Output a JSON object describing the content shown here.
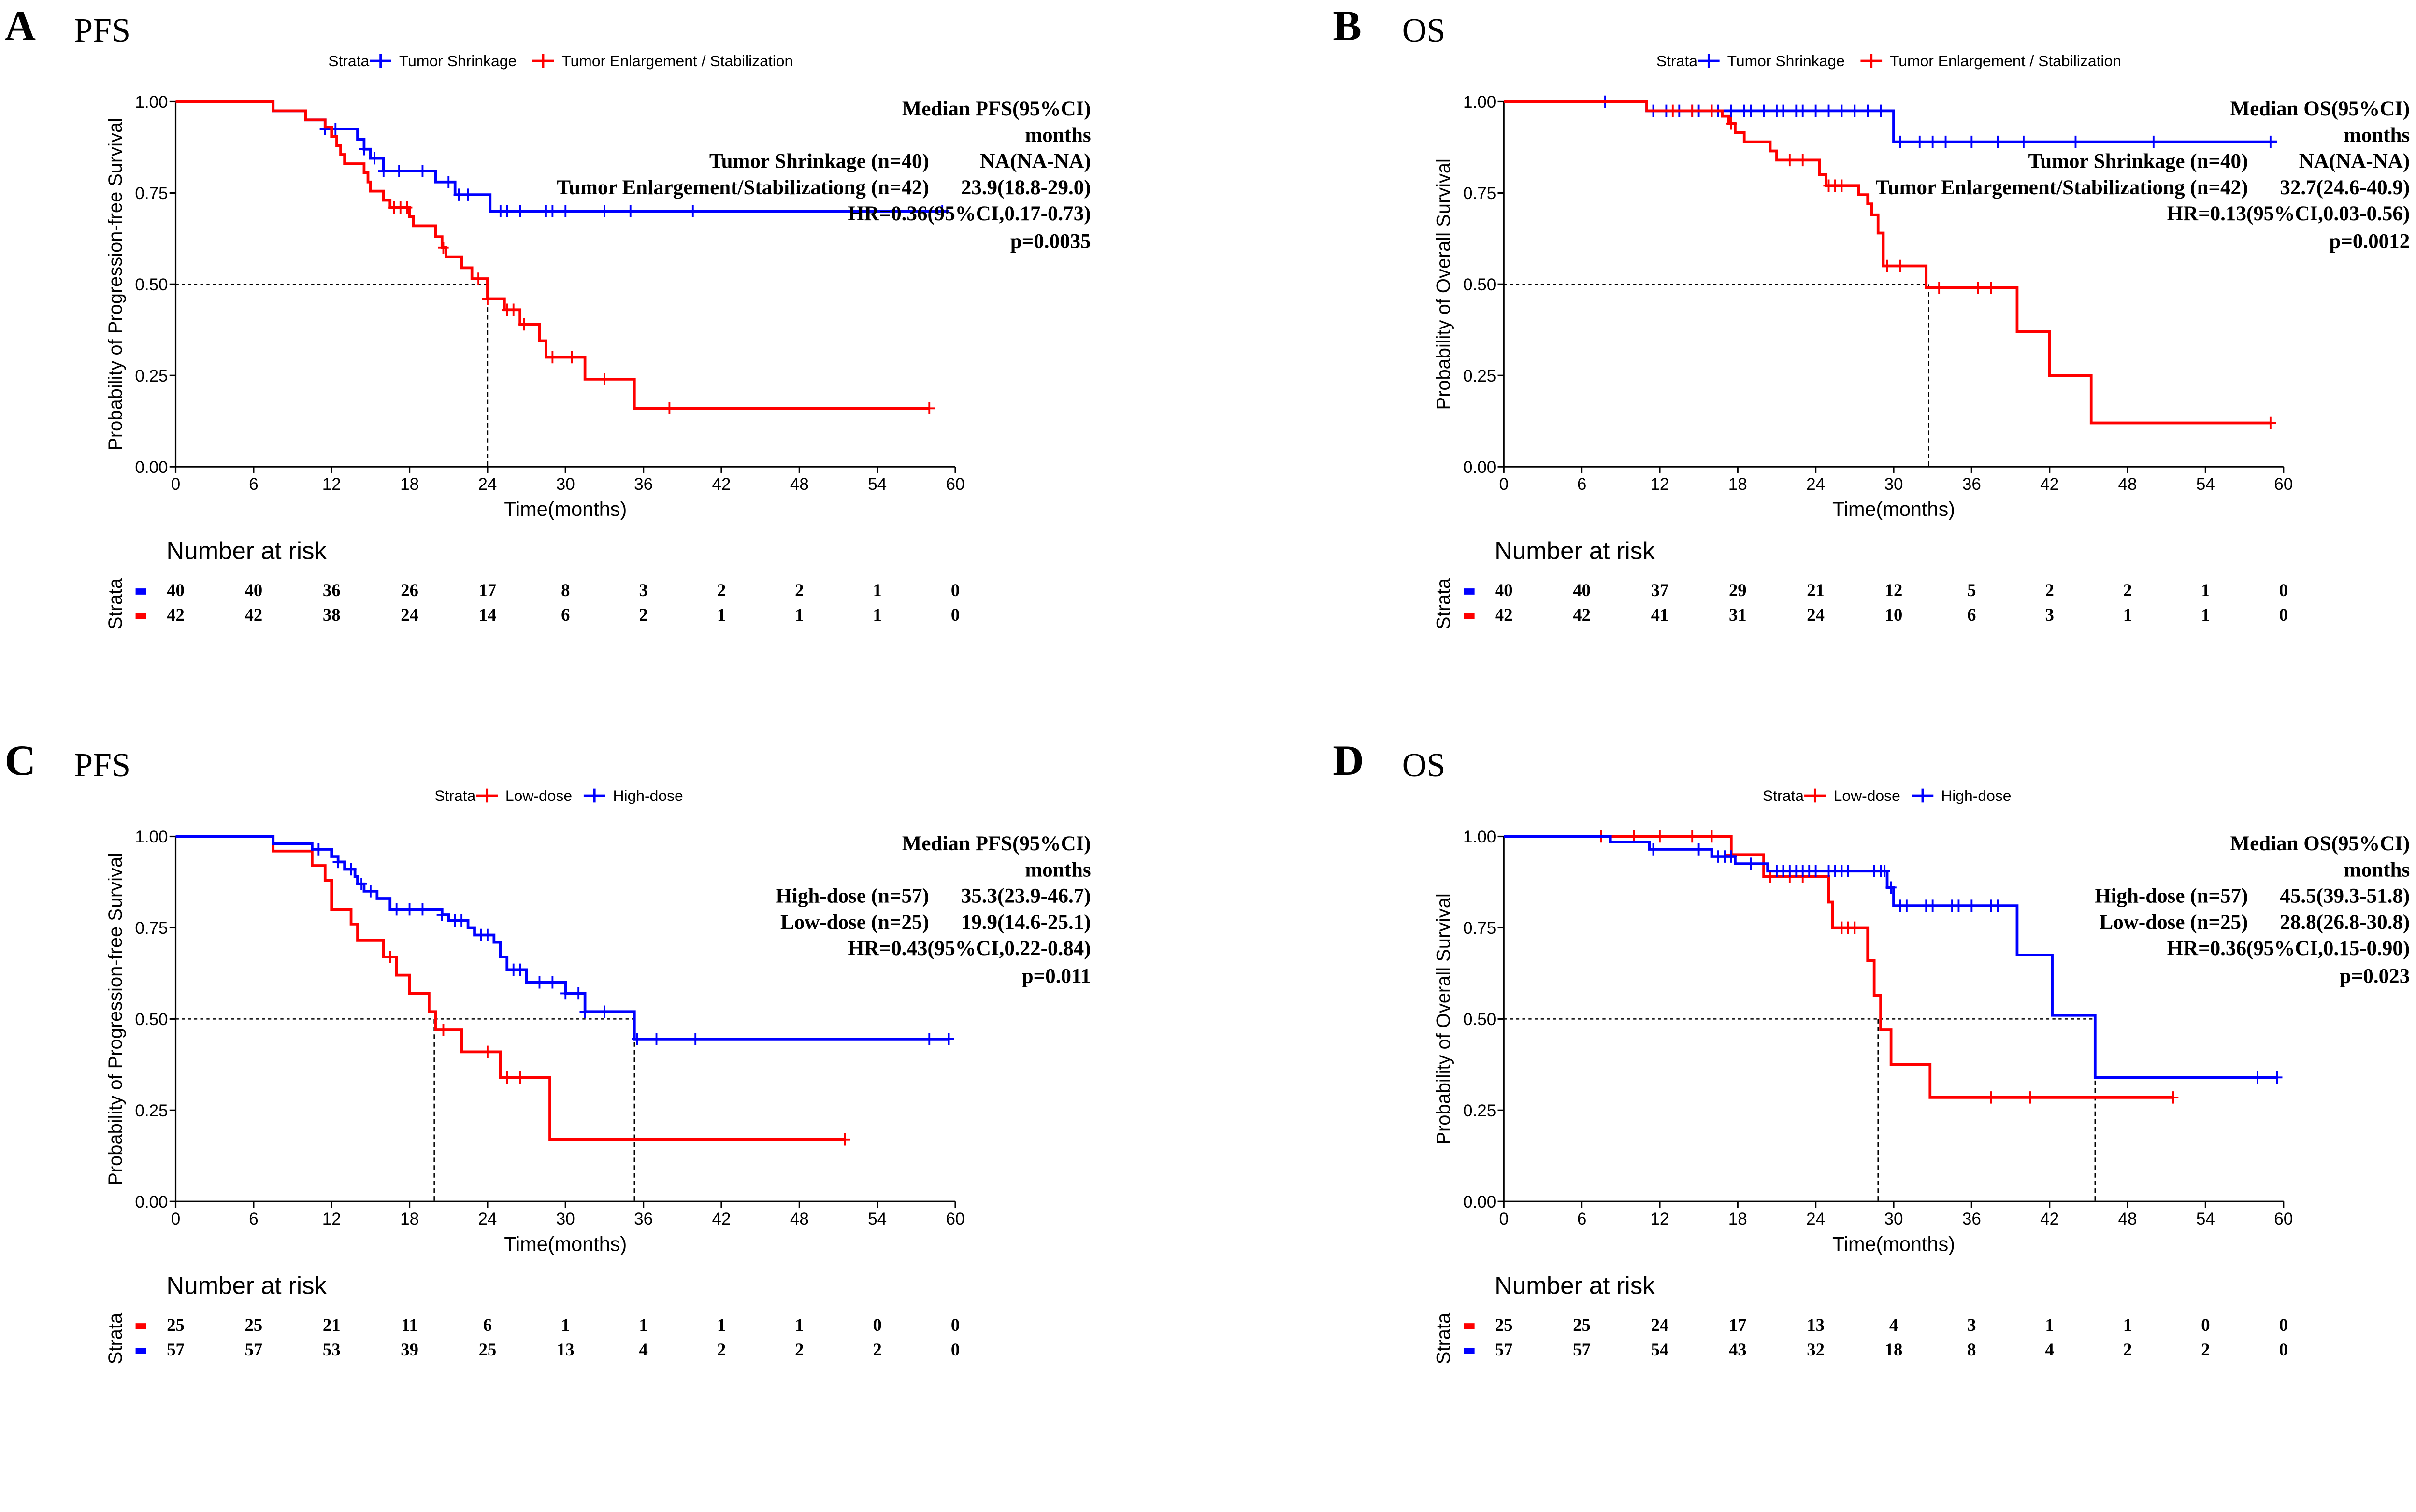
{
  "colors": {
    "blue": "#0000FF",
    "red": "#FF0000",
    "axis": "#000000"
  },
  "chart_data": [
    {
      "type": "line",
      "letter": "A",
      "title": "PFS",
      "xlabel": "Time(months)",
      "ylabel": "Probability of  Progression-free Survival",
      "xlim": [
        0,
        60
      ],
      "ylim": [
        0,
        1
      ],
      "xticks": [
        "0",
        "6",
        "12",
        "18",
        "24",
        "30",
        "36",
        "42",
        "48",
        "54",
        "60"
      ],
      "yticks": [
        "0.00",
        "0.25",
        "0.50",
        "0.75",
        "1.00"
      ],
      "legend": {
        "title": "Strata",
        "position": "top"
      },
      "medians": [
        24
      ],
      "annotation": {
        "heading": "Median PFS(95%CI)",
        "unit": "months",
        "rows": [
          {
            "label": "Tumor Shrinkage (n=40)",
            "value": "NA(NA-NA)"
          },
          {
            "label": "Tumor Enlargement/Stabilizationg (n=42)",
            "value": "23.9(18.8-29.0)"
          }
        ],
        "hr": "HR=0.36(95%CI,0.17-0.73)",
        "p": "p=0.0035"
      },
      "risk_title": "Number at risk",
      "risk_ylabel": "Strata",
      "series": [
        {
          "name": "Tumor Shrinkage",
          "color": "#0000FF",
          "steps": [
            [
              0,
              1
            ],
            [
              7.5,
              0.975
            ],
            [
              10,
              0.95
            ],
            [
              11.5,
              0.925
            ],
            [
              14,
              0.897
            ],
            [
              14.5,
              0.87
            ],
            [
              15,
              0.845
            ],
            [
              16,
              0.81
            ],
            [
              20,
              0.78
            ],
            [
              21.5,
              0.745
            ],
            [
              24.2,
              0.7
            ],
            [
              59.5,
              0.7
            ]
          ],
          "censors": [
            11.5,
            12.3,
            14.5,
            15.3,
            16,
            17.2,
            19,
            21,
            21.8,
            22.5,
            25,
            25.5,
            26.5,
            28.5,
            29,
            30,
            33,
            35,
            39.8,
            59
          ],
          "risk": [
            "40",
            "40",
            "36",
            "26",
            "17",
            "8",
            "3",
            "2",
            "2",
            "1",
            "0"
          ]
        },
        {
          "name": "Tumor Enlargement / Stabilization",
          "color": "#FF0000",
          "steps": [
            [
              0,
              1
            ],
            [
              7.5,
              0.975
            ],
            [
              10,
              0.95
            ],
            [
              11.5,
              0.93
            ],
            [
              12,
              0.905
            ],
            [
              12.4,
              0.88
            ],
            [
              12.7,
              0.855
            ],
            [
              13,
              0.83
            ],
            [
              14.5,
              0.805
            ],
            [
              14.8,
              0.78
            ],
            [
              15,
              0.755
            ],
            [
              16,
              0.73
            ],
            [
              16.5,
              0.71
            ],
            [
              18,
              0.685
            ],
            [
              18.3,
              0.66
            ],
            [
              20,
              0.63
            ],
            [
              20.5,
              0.6
            ],
            [
              20.8,
              0.575
            ],
            [
              22,
              0.545
            ],
            [
              22.8,
              0.515
            ],
            [
              24,
              0.46
            ],
            [
              25.3,
              0.43
            ],
            [
              26.5,
              0.39
            ],
            [
              28,
              0.345
            ],
            [
              28.5,
              0.3
            ],
            [
              31.5,
              0.24
            ],
            [
              35.3,
              0.16
            ],
            [
              58,
              0.16
            ]
          ],
          "censors": [
            16.8,
            17.3,
            17.8,
            20.6,
            23.3,
            24,
            25.5,
            26,
            26.8,
            29,
            30.5,
            33,
            38,
            58
          ],
          "risk": [
            "42",
            "42",
            "38",
            "24",
            "14",
            "6",
            "2",
            "1",
            "1",
            "1",
            "0"
          ]
        }
      ]
    },
    {
      "type": "line",
      "letter": "B",
      "title": "OS",
      "xlabel": "Time(months)",
      "ylabel": "Probability of  Overall Survival",
      "xlim": [
        0,
        60
      ],
      "ylim": [
        0,
        1
      ],
      "xticks": [
        "0",
        "6",
        "12",
        "18",
        "24",
        "30",
        "36",
        "42",
        "48",
        "54",
        "60"
      ],
      "yticks": [
        "0.00",
        "0.25",
        "0.50",
        "0.75",
        "1.00"
      ],
      "legend": {
        "title": "Strata",
        "position": "top"
      },
      "medians": [
        32.7
      ],
      "annotation": {
        "heading": "Median OS(95%CI)",
        "unit": "months",
        "rows": [
          {
            "label": "Tumor Shrinkage (n=40)",
            "value": "NA(NA-NA)"
          },
          {
            "label": "Tumor Enlargement/Stabilizationg (n=42)",
            "value": "32.7(24.6-40.9)"
          }
        ],
        "hr": "HR=0.13(95%CI,0.03-0.56)",
        "p": "p=0.0012"
      },
      "risk_title": "Number at risk",
      "risk_ylabel": "Strata",
      "series": [
        {
          "name": "Tumor Shrinkage",
          "color": "#0000FF",
          "steps": [
            [
              0,
              1
            ],
            [
              11,
              0.975
            ],
            [
              30,
              0.89
            ],
            [
              59.5,
              0.89
            ]
          ],
          "censors": [
            7.8,
            11.5,
            12.5,
            13.5,
            14.5,
            15,
            16,
            16.5,
            17.5,
            18.5,
            19,
            20,
            21,
            21.5,
            22.5,
            23,
            24,
            25,
            26,
            27,
            28,
            29,
            30.5,
            32,
            33,
            34,
            36,
            38,
            40,
            44,
            50,
            59
          ],
          "risk": [
            "40",
            "40",
            "37",
            "29",
            "21",
            "12",
            "5",
            "2",
            "2",
            "1",
            "0"
          ]
        },
        {
          "name": "Tumor Enlargement / Stabilization",
          "color": "#FF0000",
          "steps": [
            [
              0,
              1
            ],
            [
              11,
              0.975
            ],
            [
              16.8,
              0.96
            ],
            [
              17.3,
              0.94
            ],
            [
              17.8,
              0.915
            ],
            [
              18.5,
              0.89
            ],
            [
              20.5,
              0.865
            ],
            [
              21,
              0.84
            ],
            [
              24.3,
              0.8
            ],
            [
              24.8,
              0.77
            ],
            [
              27.3,
              0.745
            ],
            [
              28,
              0.72
            ],
            [
              28.3,
              0.69
            ],
            [
              28.8,
              0.64
            ],
            [
              29.2,
              0.55
            ],
            [
              32.5,
              0.49
            ],
            [
              39.5,
              0.37
            ],
            [
              42,
              0.25
            ],
            [
              45.2,
              0.12
            ],
            [
              59,
              0.12
            ]
          ],
          "censors": [
            13,
            14.5,
            16,
            17.5,
            22,
            23,
            25,
            25.5,
            26,
            29.5,
            30.5,
            33.5,
            36.5,
            37.5,
            59
          ],
          "risk": [
            "42",
            "42",
            "41",
            "31",
            "24",
            "10",
            "6",
            "3",
            "1",
            "1",
            "0"
          ]
        }
      ]
    },
    {
      "type": "line",
      "letter": "C",
      "title": "PFS",
      "xlabel": "Time(months)",
      "ylabel": "Probability of  Progression-free Survival",
      "xlim": [
        0,
        60
      ],
      "ylim": [
        0,
        1
      ],
      "xticks": [
        "0",
        "6",
        "12",
        "18",
        "24",
        "30",
        "36",
        "42",
        "48",
        "54",
        "60"
      ],
      "yticks": [
        "0.00",
        "0.25",
        "0.50",
        "0.75",
        "1.00"
      ],
      "legend": {
        "title": "Strata",
        "position": "top"
      },
      "medians": [
        19.9,
        35.3
      ],
      "annotation": {
        "heading": "Median PFS(95%CI)",
        "unit": "months",
        "rows": [
          {
            "label": "High-dose (n=57)",
            "value": "35.3(23.9-46.7)"
          },
          {
            "label": "Low-dose (n=25)",
            "value": "19.9(14.6-25.1)"
          }
        ],
        "hr": "HR=0.43(95%CI,0.22-0.84)",
        "p": "p=0.011"
      },
      "risk_title": "Number at risk",
      "risk_ylabel": "Strata",
      "series": [
        {
          "name": "Low-dose",
          "color": "#FF0000",
          "steps": [
            [
              0,
              1
            ],
            [
              7.5,
              0.96
            ],
            [
              10.5,
              0.92
            ],
            [
              11.5,
              0.88
            ],
            [
              12,
              0.8
            ],
            [
              13.5,
              0.76
            ],
            [
              14,
              0.715
            ],
            [
              16,
              0.67
            ],
            [
              17,
              0.62
            ],
            [
              18,
              0.57
            ],
            [
              19.5,
              0.52
            ],
            [
              20,
              0.47
            ],
            [
              22,
              0.41
            ],
            [
              25,
              0.34
            ],
            [
              28.8,
              0.17
            ],
            [
              51.5,
              0.17
            ]
          ],
          "censors": [
            16.5,
            20.6,
            24,
            25.5,
            26.5,
            51.5
          ],
          "risk": [
            "25",
            "25",
            "21",
            "11",
            "6",
            "1",
            "1",
            "1",
            "1",
            "0",
            "0"
          ]
        },
        {
          "name": "High-dose",
          "color": "#0000FF",
          "steps": [
            [
              0,
              1
            ],
            [
              7.5,
              0.98
            ],
            [
              10.5,
              0.965
            ],
            [
              12,
              0.945
            ],
            [
              12.5,
              0.93
            ],
            [
              13,
              0.91
            ],
            [
              13.8,
              0.89
            ],
            [
              14,
              0.87
            ],
            [
              14.5,
              0.85
            ],
            [
              15.5,
              0.83
            ],
            [
              16.5,
              0.8
            ],
            [
              20.5,
              0.785
            ],
            [
              21,
              0.77
            ],
            [
              22.5,
              0.75
            ],
            [
              23,
              0.73
            ],
            [
              24.5,
              0.71
            ],
            [
              25,
              0.67
            ],
            [
              25.5,
              0.635
            ],
            [
              27,
              0.6
            ],
            [
              30,
              0.57
            ],
            [
              31.5,
              0.52
            ],
            [
              35.3,
              0.445
            ],
            [
              59.5,
              0.445
            ]
          ],
          "censors": [
            11,
            12.5,
            13.5,
            14.3,
            15,
            17,
            18,
            19,
            20.5,
            21.5,
            22,
            23.5,
            24,
            26,
            26.5,
            28,
            29,
            30,
            31,
            31.5,
            33,
            35.5,
            37,
            40,
            58,
            59.5
          ],
          "risk": [
            "57",
            "57",
            "53",
            "39",
            "25",
            "13",
            "4",
            "2",
            "2",
            "2",
            "0"
          ]
        }
      ]
    },
    {
      "type": "line",
      "letter": "D",
      "title": "OS",
      "xlabel": "Time(months)",
      "ylabel": "Probability of  Overall Survival",
      "xlim": [
        0,
        60
      ],
      "ylim": [
        0,
        1
      ],
      "xticks": [
        "0",
        "6",
        "12",
        "18",
        "24",
        "30",
        "36",
        "42",
        "48",
        "54",
        "60"
      ],
      "yticks": [
        "0.00",
        "0.25",
        "0.50",
        "0.75",
        "1.00"
      ],
      "legend": {
        "title": "Strata",
        "position": "top"
      },
      "medians": [
        28.8,
        45.5
      ],
      "annotation": {
        "heading": "Median OS(95%CI)",
        "unit": "months",
        "rows": [
          {
            "label": "High-dose (n=57)",
            "value": "45.5(39.3-51.8)"
          },
          {
            "label": "Low-dose (n=25)",
            "value": "28.8(26.8-30.8)"
          }
        ],
        "hr": "HR=0.36(95%CI,0.15-0.90)",
        "p": "p=0.023"
      },
      "risk_title": "Number at risk",
      "risk_ylabel": "Strata",
      "series": [
        {
          "name": "Low-dose",
          "color": "#FF0000",
          "steps": [
            [
              0,
              1
            ],
            [
              17.5,
              0.95
            ],
            [
              20,
              0.89
            ],
            [
              25,
              0.82
            ],
            [
              25.3,
              0.75
            ],
            [
              28,
              0.66
            ],
            [
              28.5,
              0.565
            ],
            [
              29,
              0.47
            ],
            [
              29.8,
              0.375
            ],
            [
              32.8,
              0.285
            ],
            [
              51.5,
              0.285
            ]
          ],
          "censors": [
            7.5,
            10,
            12,
            14.5,
            16,
            17.5,
            20.5,
            22,
            23,
            26,
            26.5,
            27,
            37.5,
            40.5,
            51.5
          ],
          "risk": [
            "25",
            "25",
            "24",
            "17",
            "13",
            "4",
            "3",
            "1",
            "1",
            "0",
            "0"
          ]
        },
        {
          "name": "High-dose",
          "color": "#0000FF",
          "steps": [
            [
              0,
              1
            ],
            [
              8.2,
              0.985
            ],
            [
              11.2,
              0.965
            ],
            [
              16,
              0.945
            ],
            [
              17.8,
              0.925
            ],
            [
              20.3,
              0.905
            ],
            [
              29.5,
              0.86
            ],
            [
              30,
              0.81
            ],
            [
              39.5,
              0.675
            ],
            [
              42.2,
              0.51
            ],
            [
              45.5,
              0.34
            ],
            [
              59.5,
              0.34
            ]
          ],
          "censors": [
            11.5,
            15,
            16.5,
            17,
            17.5,
            19,
            21,
            21.5,
            22,
            22.5,
            23,
            23.5,
            24,
            25,
            25.5,
            26,
            26.5,
            28.5,
            29,
            29.3,
            29.8,
            30.5,
            31,
            32.5,
            33,
            34.5,
            35,
            36,
            37.5,
            38,
            58,
            59.5
          ],
          "risk": [
            "57",
            "57",
            "54",
            "43",
            "32",
            "18",
            "8",
            "4",
            "2",
            "2",
            "0"
          ]
        }
      ]
    }
  ]
}
